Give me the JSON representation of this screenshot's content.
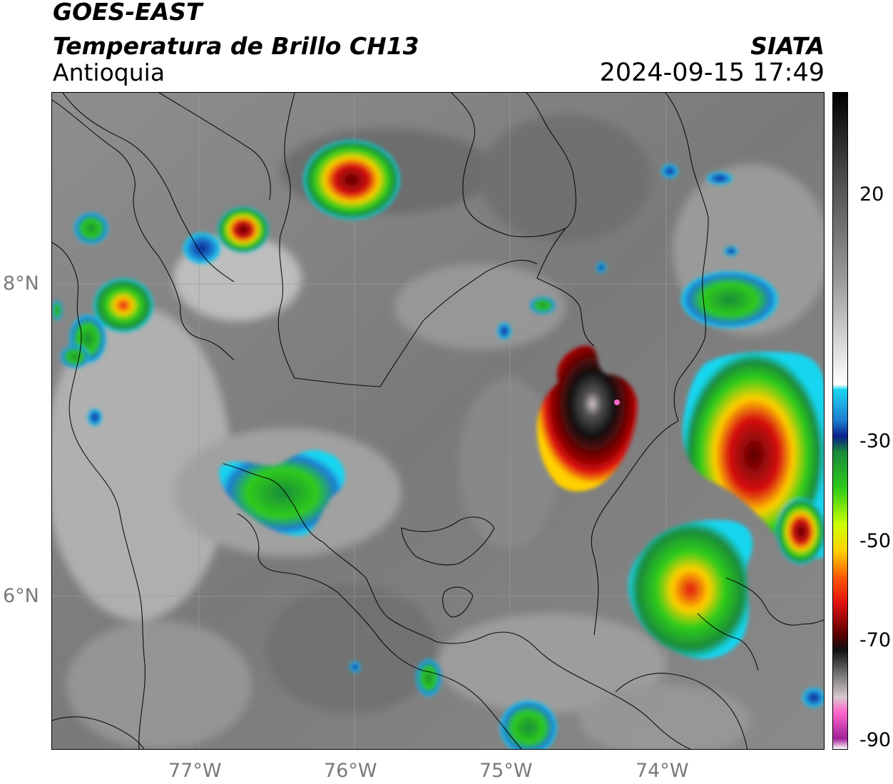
{
  "header": {
    "satellite": "GOES-EAST",
    "product": "Temperatura de Brillo CH13",
    "organization": "SIATA",
    "region": "Antioquia",
    "timestamp": "2024-09-15 17:49"
  },
  "map": {
    "x_ticks": [
      "77°W",
      "76°W",
      "75°W",
      "74°W"
    ],
    "y_ticks": [
      "8°N",
      "6°N"
    ],
    "grid": true
  },
  "colorbar": {
    "labels": [
      "20",
      "-30",
      "-50",
      "-70",
      "-90"
    ],
    "stops": [
      {
        "value": 36,
        "color": "#000000"
      },
      {
        "value": 20,
        "color": "#4a4a4a"
      },
      {
        "value": 0,
        "color": "#9a9a9a"
      },
      {
        "value": -15,
        "color": "#e6e6e6"
      },
      {
        "value": -20,
        "color": "#ffffff"
      },
      {
        "value": -21,
        "color": "#19d6f0"
      },
      {
        "value": -27,
        "color": "#1e7ad0"
      },
      {
        "value": -30,
        "color": "#0a1f8a"
      },
      {
        "value": -33,
        "color": "#1a8a3a"
      },
      {
        "value": -40,
        "color": "#2ecc1a"
      },
      {
        "value": -47,
        "color": "#ccff00"
      },
      {
        "value": -52,
        "color": "#ffd000"
      },
      {
        "value": -57,
        "color": "#ff5a00"
      },
      {
        "value": -62,
        "color": "#e01010"
      },
      {
        "value": -68,
        "color": "#5a0000"
      },
      {
        "value": -71,
        "color": "#111111"
      },
      {
        "value": -75,
        "color": "#666666"
      },
      {
        "value": -80,
        "color": "#d8c8d0"
      },
      {
        "value": -83,
        "color": "#ff66cc"
      },
      {
        "value": -88,
        "color": "#a0209a"
      },
      {
        "value": -90,
        "color": "#ffffff"
      }
    ]
  }
}
